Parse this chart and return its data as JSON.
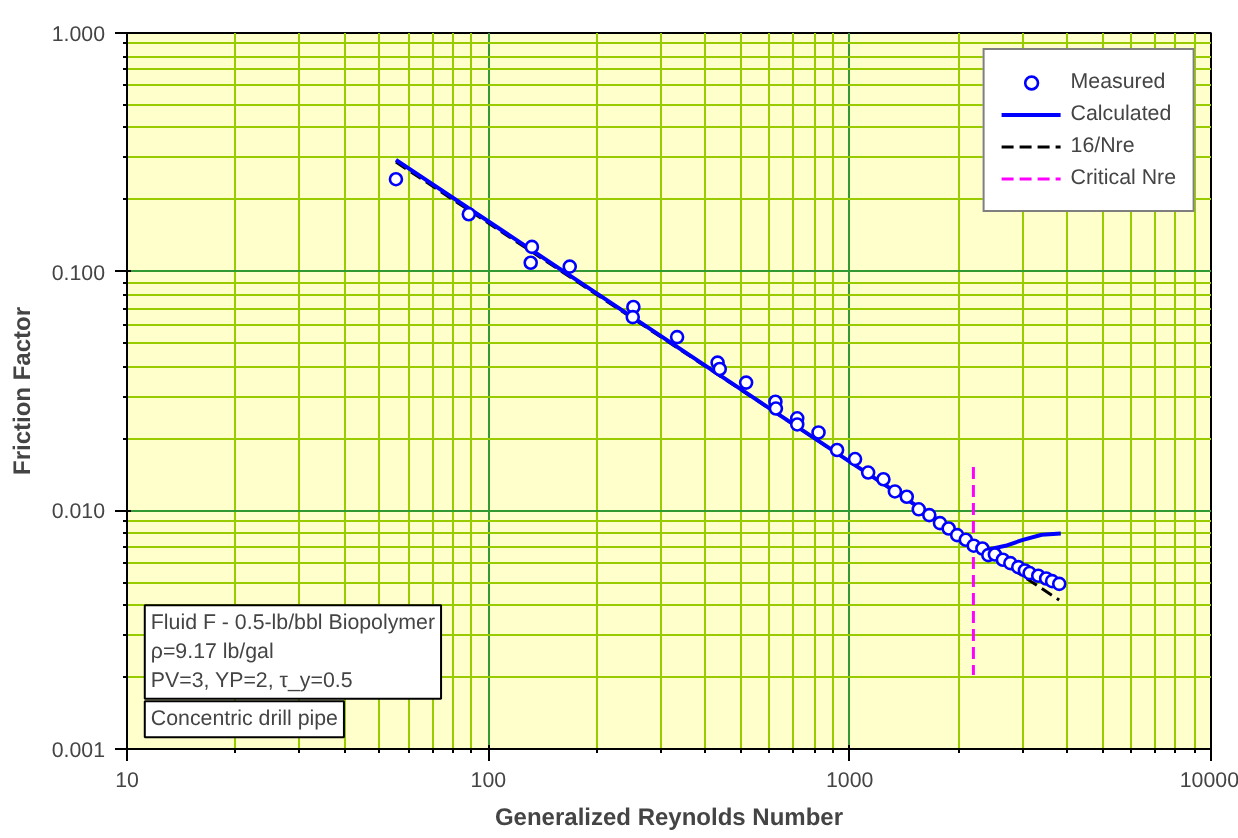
{
  "chart_data": {
    "type": "scatter",
    "xlabel": "Generalized Reynolds Number",
    "ylabel": "Friction Factor",
    "log": "xy",
    "grid": true,
    "legend": "top right",
    "xlim": [
      10,
      10000
    ],
    "xticks": [
      10,
      {
        "value": 20,
        "label": null
      },
      {
        "value": 30,
        "label": null
      },
      {
        "value": 40,
        "label": null
      },
      {
        "value": 50,
        "label": null
      },
      {
        "value": 60,
        "label": null
      },
      {
        "value": 70,
        "label": null
      },
      {
        "value": 80,
        "label": null
      },
      {
        "value": 90,
        "label": null
      },
      100,
      {
        "value": 200,
        "label": null
      },
      {
        "value": 300,
        "label": null
      },
      {
        "value": 400,
        "label": null
      },
      {
        "value": 500,
        "label": null
      },
      {
        "value": 600,
        "label": null
      },
      {
        "value": 700,
        "label": null
      },
      {
        "value": 800,
        "label": null
      },
      {
        "value": 900,
        "label": null
      },
      1000,
      {
        "value": 2000,
        "label": null
      },
      {
        "value": 3000,
        "label": null
      },
      {
        "value": 4000,
        "label": null
      },
      {
        "value": 5000,
        "label": null
      },
      {
        "value": 6000,
        "label": null
      },
      {
        "value": 7000,
        "label": null
      },
      {
        "value": 8000,
        "label": null
      },
      {
        "value": 9000,
        "label": null
      },
      10000
    ],
    "ylim": [
      0.001,
      1
    ],
    "yticks": [
      {
        "value": 0.001,
        "label": "0.001"
      },
      {
        "value": 0.002,
        "label": null
      },
      {
        "value": 0.003,
        "label": null
      },
      {
        "value": 0.004,
        "label": null
      },
      {
        "value": 0.005,
        "label": null
      },
      {
        "value": 0.006,
        "label": null
      },
      {
        "value": 0.007,
        "label": null
      },
      {
        "value": 0.008,
        "label": null
      },
      {
        "value": 0.009,
        "label": null
      },
      {
        "value": 0.01,
        "label": "0.010"
      },
      {
        "value": 0.02,
        "label": null
      },
      {
        "value": 0.03,
        "label": null
      },
      {
        "value": 0.04,
        "label": null
      },
      {
        "value": 0.05,
        "label": null
      },
      {
        "value": 0.06,
        "label": null
      },
      {
        "value": 0.07,
        "label": null
      },
      {
        "value": 0.08,
        "label": null
      },
      {
        "value": 0.09,
        "label": null
      },
      {
        "value": 0.1,
        "label": "0.100"
      },
      {
        "value": 0.2,
        "label": null
      },
      {
        "value": 0.3,
        "label": null
      },
      {
        "value": 0.4,
        "label": null
      },
      {
        "value": 0.5,
        "label": null
      },
      {
        "value": 0.6,
        "label": null
      },
      {
        "value": 0.7,
        "label": null
      },
      {
        "value": 0.8,
        "label": null
      },
      {
        "value": 0.9,
        "label": null
      },
      {
        "value": 1,
        "label": "1.000"
      }
    ],
    "series": [
      {
        "name": "Measured",
        "marker": "circle",
        "color": "#0000ff",
        "x": [
          55.5,
          88.3,
          132,
          131,
          168,
          252,
          251,
          333,
          431,
          437,
          517,
          623,
          625,
          716,
          716,
          820,
          923,
          1035,
          1125,
          1240,
          1334,
          1439,
          1553,
          1661,
          1778,
          1879,
          1984,
          2096,
          2205,
          2330,
          2420,
          2523,
          2655,
          2784,
          2928,
          3055,
          3147,
          3326,
          3498,
          3633,
          3802
        ],
        "values": [
          0.244,
          0.174,
          0.127,
          0.109,
          0.105,
          0.0711,
          0.0645,
          0.0532,
          0.0416,
          0.0391,
          0.0343,
          0.0285,
          0.0267,
          0.0243,
          0.0229,
          0.0212,
          0.0179,
          0.0164,
          0.0144,
          0.0135,
          0.012,
          0.0114,
          0.0101,
          0.00955,
          0.00884,
          0.00839,
          0.00787,
          0.00753,
          0.00711,
          0.00692,
          0.00649,
          0.00653,
          0.00621,
          0.00601,
          0.00578,
          0.0056,
          0.00546,
          0.00532,
          0.00518,
          0.00505,
          0.00492
        ]
      },
      {
        "name": "Calculated",
        "type": "line",
        "color": "#0000ff",
        "line_style": "solid",
        "x": [
          55.5,
          1000,
          2000,
          2420,
          2700,
          3000,
          3400,
          3840
        ],
        "values": [
          0.294,
          0.016,
          0.008,
          0.00686,
          0.0071,
          0.0075,
          0.0079,
          0.008
        ]
      },
      {
        "name": "16/Nre",
        "type": "line",
        "color": "#000000",
        "line_style": "dashed",
        "x": [
          55.5,
          3800
        ],
        "values": [
          0.288,
          0.00421
        ]
      },
      {
        "name": "Critical Nre",
        "type": "line",
        "color": "#ff00ff",
        "line_style": "dashed",
        "x": [
          2200,
          2200
        ],
        "values": [
          0.0152,
          0.00204
        ]
      }
    ],
    "annotations": [
      "Fluid F - 0.5-lb/bbl Biopolymer\nρ=9.17 lb/gal\nPV=3, YP=2, τ_y=0.5",
      "Concentric drill pipe"
    ]
  }
}
